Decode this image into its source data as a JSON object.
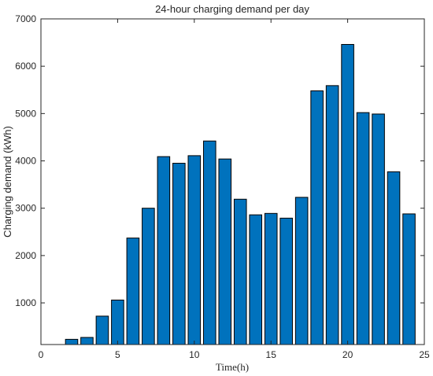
{
  "chart_data": {
    "type": "bar",
    "title": "24-hour charging demand per day",
    "xlabel": "Time(h)",
    "ylabel": "Charging demand (kWh)",
    "x": [
      2,
      3,
      4,
      5,
      6,
      7,
      8,
      9,
      10,
      11,
      12,
      13,
      14,
      15,
      16,
      17,
      18,
      19,
      20,
      21,
      22,
      23,
      24
    ],
    "values": [
      230,
      270,
      720,
      1060,
      2370,
      3000,
      4090,
      3950,
      4110,
      4420,
      4040,
      3190,
      2860,
      2890,
      2790,
      3230,
      5480,
      5590,
      6460,
      5020,
      4990,
      3770,
      2880
    ],
    "xlim": [
      0,
      25
    ],
    "ylim": [
      120,
      7000
    ],
    "xticks": [
      "0",
      "5",
      "10",
      "15",
      "20",
      "25"
    ],
    "yticks": [
      "1000",
      "2000",
      "3000",
      "4000",
      "5000",
      "6000",
      "7000"
    ],
    "bar_color": "#0072BD",
    "bar_edge_color": "#000000",
    "grid": false,
    "legend": null
  }
}
